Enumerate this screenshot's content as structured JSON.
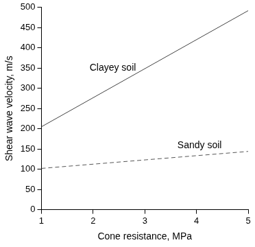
{
  "chart_data": {
    "type": "line",
    "x_label": "Cone resistance, MPa",
    "y_label": "Shear wave velocity, m/s",
    "x": [
      1,
      5
    ],
    "series": [
      {
        "name": "Clayey soil",
        "color": "#444444",
        "line_style": "solid",
        "values": [
          205,
          492
        ],
        "label_position": {
          "x": 2.38,
          "y": 351
        }
      },
      {
        "name": "Sandy soil",
        "color": "#555555",
        "line_style": "dashed",
        "values": [
          102,
          144
        ],
        "label_position": {
          "x": 4.06,
          "y": 158
        }
      }
    ],
    "xlim": [
      1,
      5
    ],
    "xticks": [
      1,
      2,
      3,
      4,
      5
    ],
    "ylim": [
      0,
      500
    ],
    "yticks": [
      0,
      50,
      100,
      150,
      200,
      250,
      300,
      350,
      400,
      450,
      500
    ],
    "grid": false
  }
}
